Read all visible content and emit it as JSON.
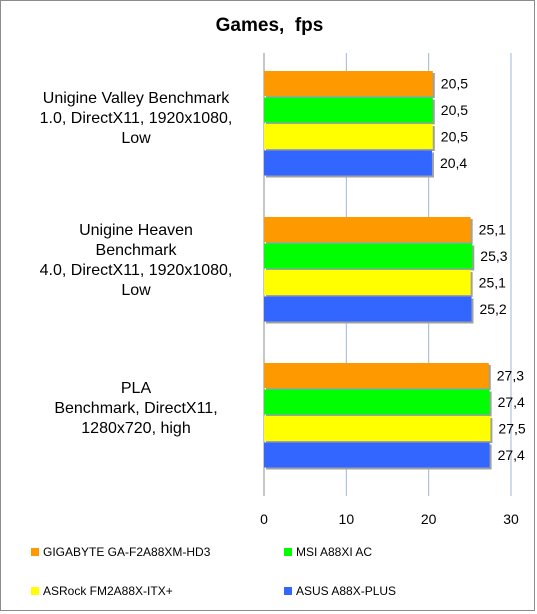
{
  "chart_data": {
    "type": "bar",
    "orientation": "horizontal",
    "title": "Games,  fps",
    "categories": [
      "Unigine Valley Benchmark\n1.0, DirectX11, 1920x1080,\nLow",
      "Unigine Heaven\nBenchmark\n4.0, DirectX11, 1920x1080,\nLow",
      "PLA\nBenchmark, DirectX11,\n1280x720, high"
    ],
    "series": [
      {
        "name": "GIGABYTE GA-F2A88XM-HD3",
        "color": "#ff9900",
        "values": [
          20.5,
          25.1,
          27.3
        ],
        "labels": [
          "20,5",
          "25,1",
          "27,3"
        ]
      },
      {
        "name": "MSI A88XI AC",
        "color": "#00ff00",
        "values": [
          20.5,
          25.3,
          27.4
        ],
        "labels": [
          "20,5",
          "25,3",
          "27,4"
        ]
      },
      {
        "name": "ASRock FM2A88X-ITX+",
        "color": "#ffff00",
        "values": [
          20.5,
          25.1,
          27.5
        ],
        "labels": [
          "20,5",
          "25,1",
          "27,5"
        ]
      },
      {
        "name": "ASUS A88X-PLUS",
        "color": "#3366ff",
        "values": [
          20.4,
          25.2,
          27.4
        ],
        "labels": [
          "20,4",
          "25,2",
          "27,4"
        ]
      }
    ],
    "xlim": [
      0,
      30
    ],
    "xticks": [
      0,
      10,
      20,
      30
    ],
    "grid": true,
    "legend": "bottom"
  }
}
